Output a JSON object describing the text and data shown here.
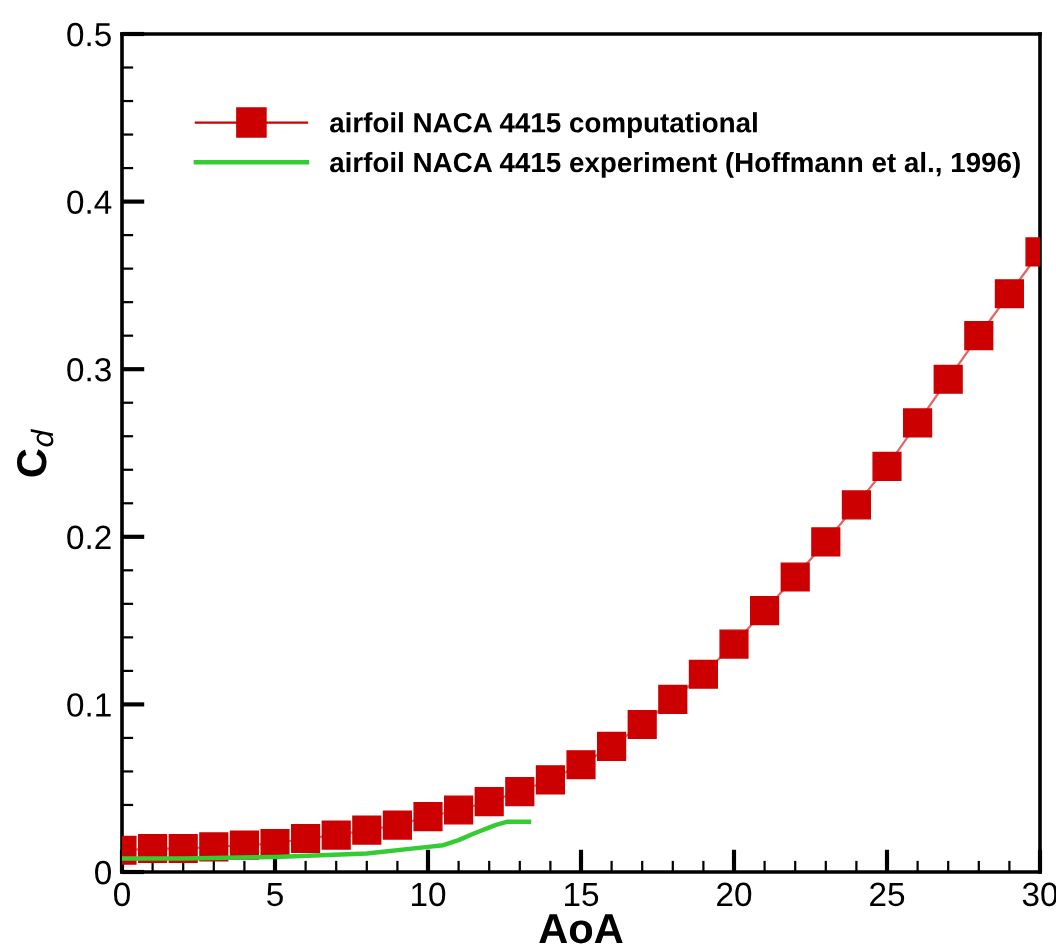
{
  "chart_data": {
    "type": "line",
    "xlabel": "AoA",
    "ylabel": "C$_{d}$",
    "xlim": [
      0,
      30
    ],
    "ylim": [
      0,
      0.5
    ],
    "xticks": [
      0,
      {
        "value": 1,
        "label": null
      },
      {
        "value": 2,
        "label": null
      },
      {
        "value": 3,
        "label": null
      },
      {
        "value": 4,
        "label": null
      },
      5,
      {
        "value": 6,
        "label": null
      },
      {
        "value": 7,
        "label": null
      },
      {
        "value": 8,
        "label": null
      },
      {
        "value": 9,
        "label": null
      },
      10,
      {
        "value": 11,
        "label": null
      },
      {
        "value": 12,
        "label": null
      },
      {
        "value": 13,
        "label": null
      },
      {
        "value": 14,
        "label": null
      },
      15,
      {
        "value": 16,
        "label": null
      },
      {
        "value": 17,
        "label": null
      },
      {
        "value": 18,
        "label": null
      },
      {
        "value": 19,
        "label": null
      },
      20,
      {
        "value": 21,
        "label": null
      },
      {
        "value": 22,
        "label": null
      },
      {
        "value": 23,
        "label": null
      },
      {
        "value": 24,
        "label": null
      },
      25,
      {
        "value": 26,
        "label": null
      },
      {
        "value": 27,
        "label": null
      },
      {
        "value": 28,
        "label": null
      },
      {
        "value": 29,
        "label": null
      },
      30
    ],
    "yticks": [
      0,
      {
        "value": 0.02,
        "label": null
      },
      {
        "value": 0.04,
        "label": null
      },
      {
        "value": 0.06,
        "label": null
      },
      {
        "value": 0.08,
        "label": null
      },
      0.1,
      {
        "value": 0.12,
        "label": null
      },
      {
        "value": 0.14,
        "label": null
      },
      {
        "value": 0.16,
        "label": null
      },
      {
        "value": 0.18,
        "label": null
      },
      0.2,
      {
        "value": 0.22,
        "label": null
      },
      {
        "value": 0.24,
        "label": null
      },
      {
        "value": 0.26,
        "label": null
      },
      {
        "value": 0.28,
        "label": null
      },
      0.3,
      {
        "value": 0.32,
        "label": null
      },
      {
        "value": 0.34,
        "label": null
      },
      {
        "value": 0.36,
        "label": null
      },
      {
        "value": 0.38,
        "label": null
      },
      0.4,
      {
        "value": 0.42,
        "label": null
      },
      {
        "value": 0.44,
        "label": null
      },
      {
        "value": 0.46,
        "label": null
      },
      {
        "value": 0.48,
        "label": null
      },
      0.5
    ],
    "grid": false,
    "legend": "top",
    "line_style": "solid",
    "series": [
      {
        "name": "airfoil NACA 4415 computational",
        "color": "#cc0000",
        "marker": "square",
        "x": [
          0,
          1,
          2,
          3,
          4,
          5,
          6,
          7,
          8,
          9,
          10,
          11,
          12,
          13,
          14,
          15,
          16,
          17,
          18,
          19,
          20,
          21,
          22,
          23,
          24,
          25,
          26,
          27,
          28,
          29,
          30
        ],
        "values": [
          0.013,
          0.014,
          0.014,
          0.015,
          0.016,
          0.017,
          0.02,
          0.022,
          0.025,
          0.028,
          0.033,
          0.037,
          0.042,
          0.048,
          0.055,
          0.064,
          0.075,
          0.088,
          0.103,
          0.118,
          0.136,
          0.156,
          0.176,
          0.197,
          0.219,
          0.242,
          0.268,
          0.294,
          0.32,
          0.345,
          0.37
        ]
      },
      {
        "name": "airfoil NACA 4415 experiment (Hoffmann et al., 1996)",
        "color": "#33cc33",
        "marker": "none",
        "x": [
          0,
          2,
          5,
          8,
          10,
          10.5,
          11,
          11.5,
          12.2,
          12.6,
          13.3
        ],
        "values": [
          0.008,
          0.008,
          0.009,
          0.011,
          0.015,
          0.016,
          0.019,
          0.023,
          0.028,
          0.03,
          0.03
        ]
      }
    ]
  }
}
